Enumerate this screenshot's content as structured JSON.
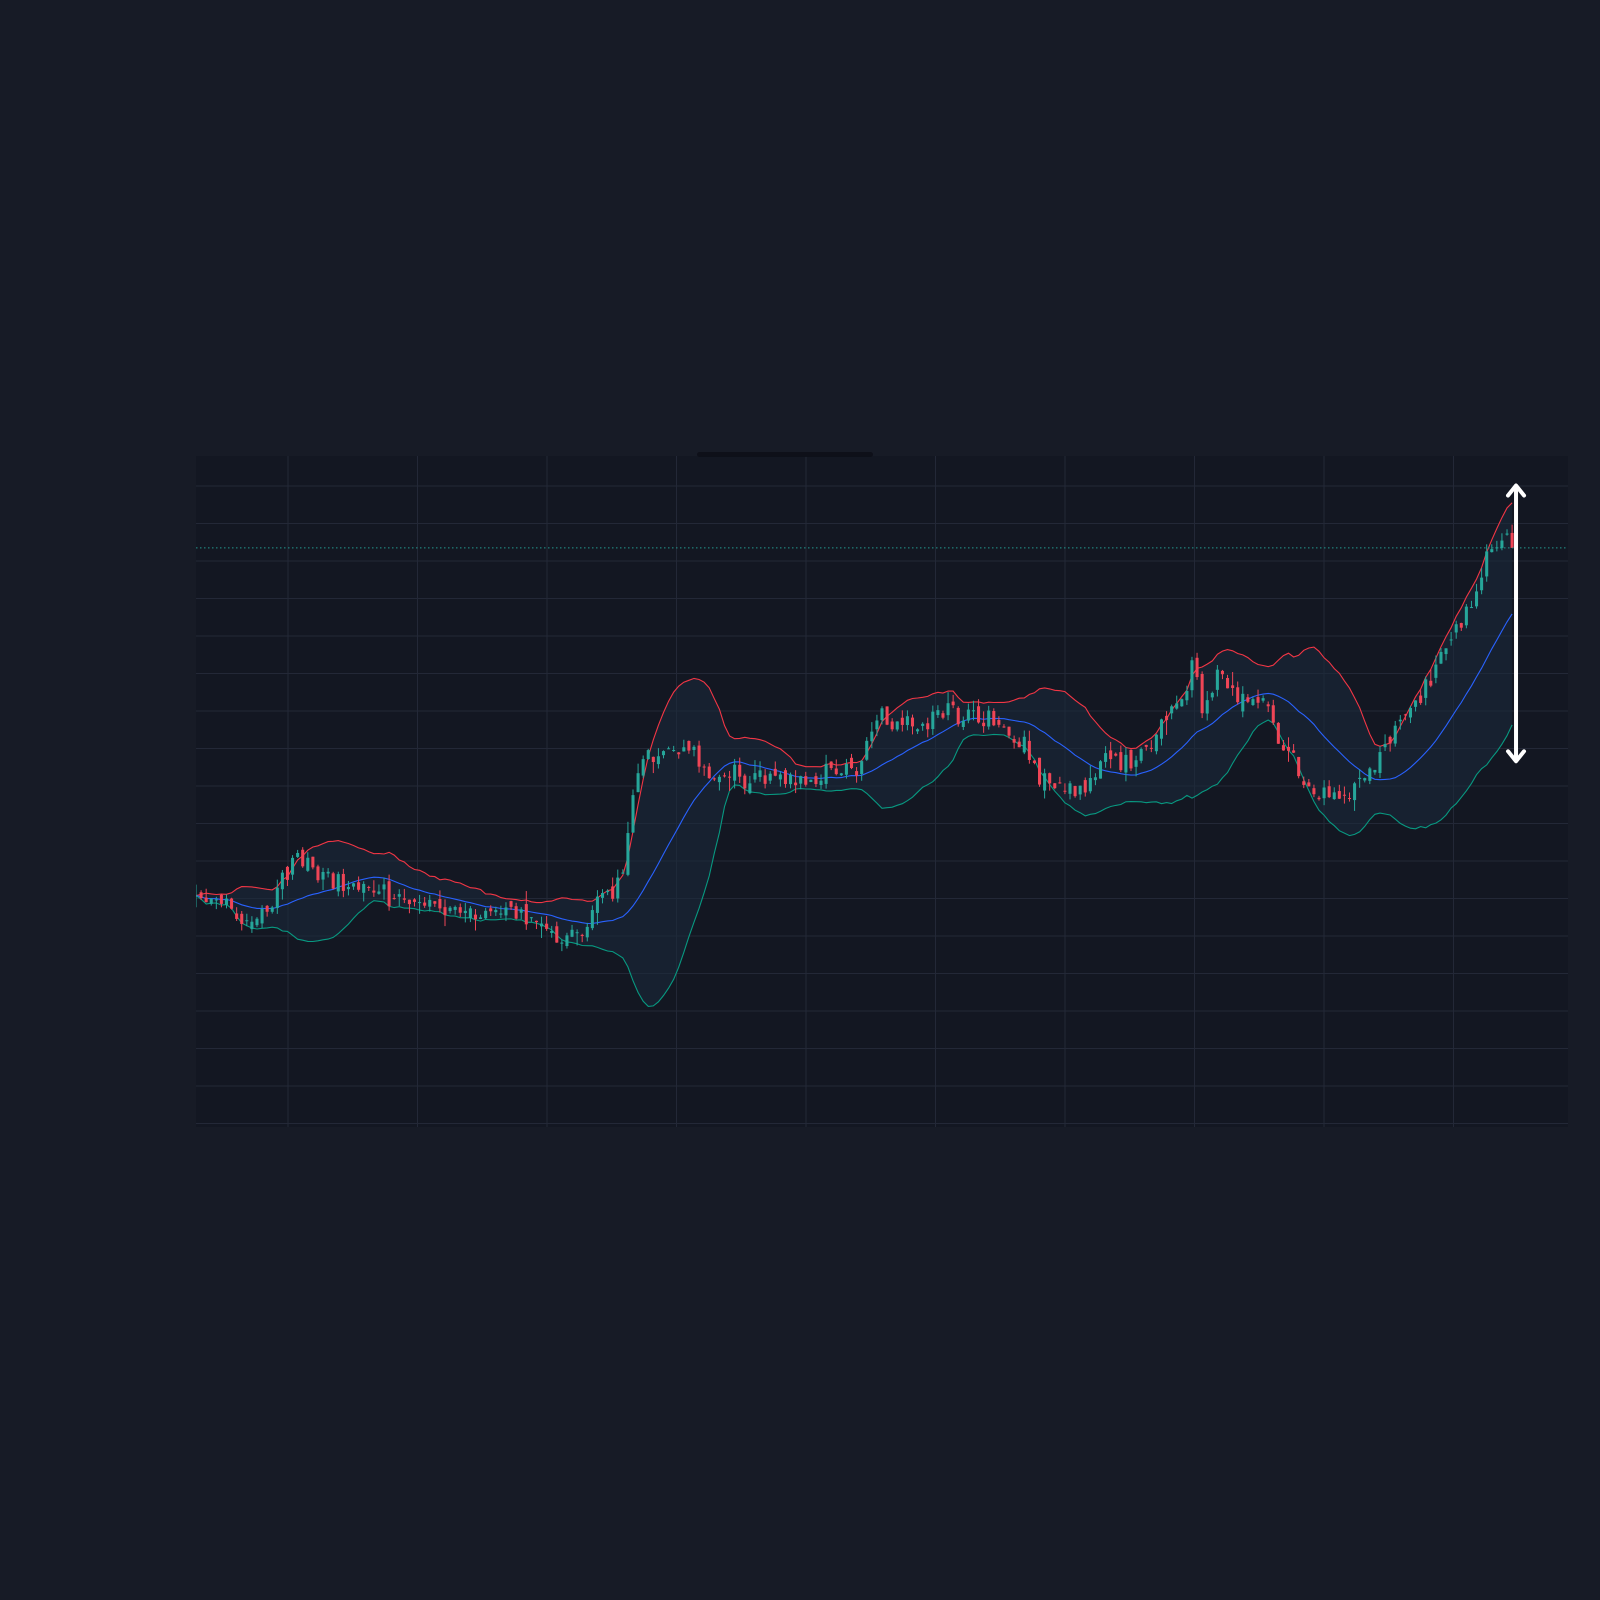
{
  "colors": {
    "background": "#171b26",
    "plot_background": "#131722",
    "grid": "#232837",
    "up_candle": "#26a69a",
    "down_candle": "#ef4556",
    "band_upper": "#f23645",
    "band_middle": "#2962ff",
    "band_lower": "#089981",
    "band_fill": "#1b2a3c",
    "price_line": "#26a69a",
    "measure_arrow": "#ffffff"
  },
  "chart_data": {
    "type": "candlestick",
    "title": "",
    "xlabel": "",
    "ylabel": "",
    "x_range": [
      0,
      270
    ],
    "ylim": [
      0,
      100
    ],
    "grid": true,
    "legend": "none",
    "bar_count": 260,
    "anchors": [
      [
        0,
        34
      ],
      [
        6,
        33
      ],
      [
        10,
        30
      ],
      [
        14,
        33
      ],
      [
        18,
        39
      ],
      [
        20,
        40
      ],
      [
        24,
        38
      ],
      [
        28,
        37
      ],
      [
        35,
        35
      ],
      [
        42,
        34
      ],
      [
        50,
        33
      ],
      [
        58,
        32
      ],
      [
        63,
        33
      ],
      [
        68,
        29
      ],
      [
        72,
        28
      ],
      [
        75,
        29
      ],
      [
        80,
        34
      ],
      [
        84,
        37
      ],
      [
        86,
        50
      ],
      [
        88,
        56
      ],
      [
        90,
        55
      ],
      [
        96,
        58
      ],
      [
        100,
        53
      ],
      [
        104,
        53
      ],
      [
        108,
        51
      ],
      [
        115,
        52
      ],
      [
        120,
        52
      ],
      [
        126,
        53
      ],
      [
        130,
        54
      ],
      [
        134,
        61
      ],
      [
        140,
        60
      ],
      [
        148,
        62
      ],
      [
        156,
        61
      ],
      [
        162,
        58
      ],
      [
        166,
        52
      ],
      [
        170,
        50
      ],
      [
        176,
        52
      ],
      [
        180,
        55
      ],
      [
        184,
        54
      ],
      [
        188,
        57
      ],
      [
        190,
        60
      ],
      [
        194,
        65
      ],
      [
        196,
        68
      ],
      [
        198,
        63
      ],
      [
        202,
        67
      ],
      [
        206,
        64
      ],
      [
        210,
        63
      ],
      [
        214,
        56
      ],
      [
        218,
        52
      ],
      [
        222,
        50
      ],
      [
        226,
        50
      ],
      [
        230,
        52
      ],
      [
        234,
        57
      ],
      [
        238,
        61
      ],
      [
        242,
        66
      ],
      [
        246,
        71
      ],
      [
        250,
        76
      ],
      [
        255,
        86
      ],
      [
        258,
        89
      ]
    ],
    "seed": 7,
    "bollinger": {
      "period": 20,
      "deviations": 2,
      "series": [
        {
          "role": "upper"
        },
        {
          "role": "middle"
        },
        {
          "role": "lower"
        }
      ]
    },
    "current_price": 86.3,
    "measure": {
      "from": 54.5,
      "to": 95.6,
      "at_bar": 258
    }
  }
}
